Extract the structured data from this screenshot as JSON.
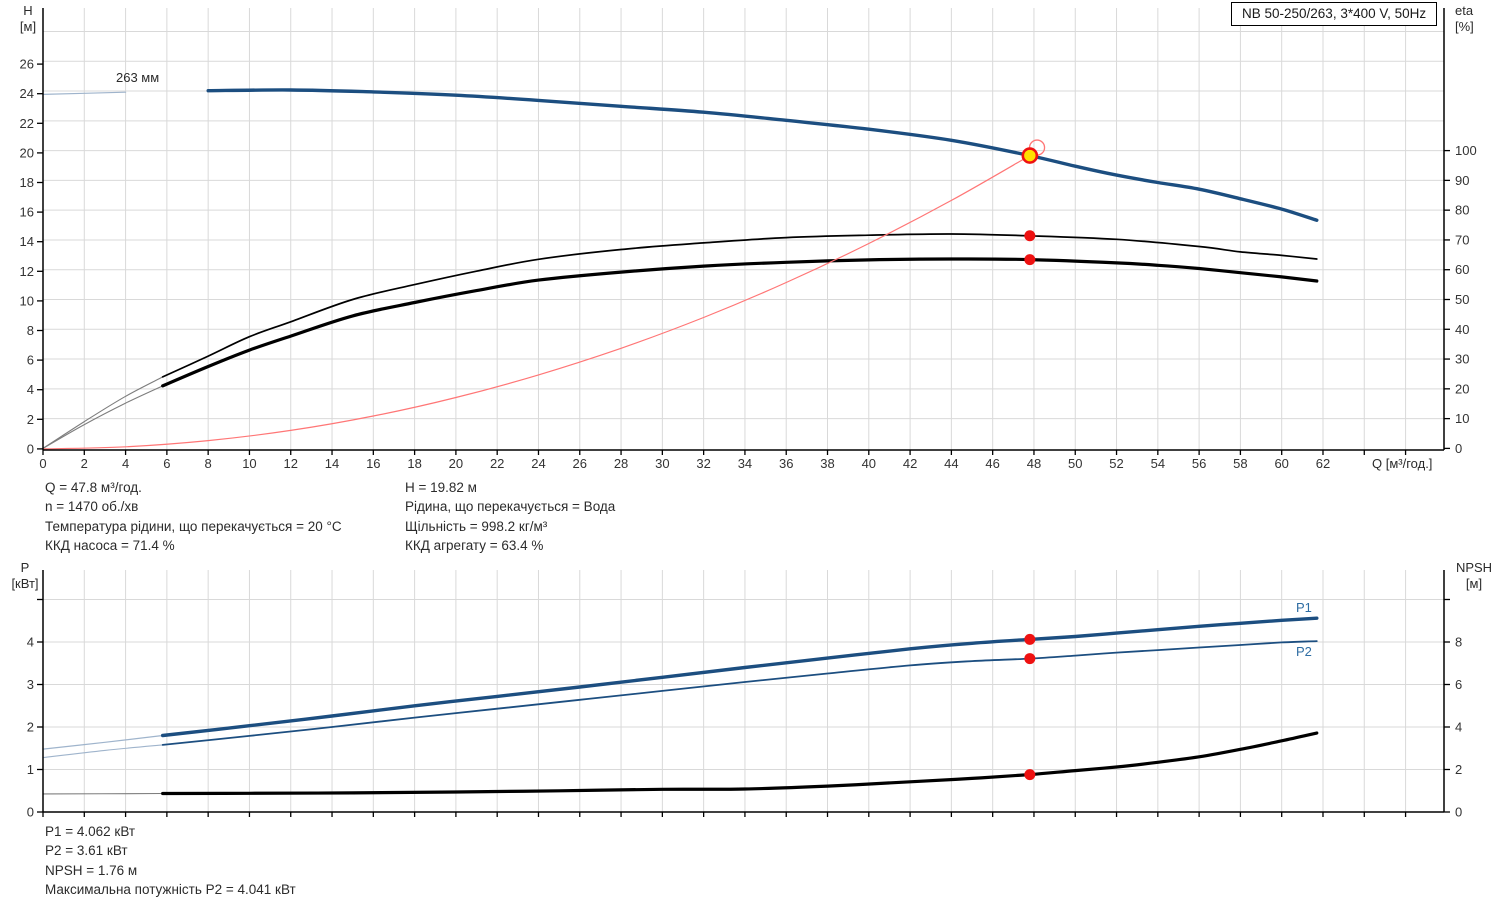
{
  "header": {
    "model_box": "NB 50-250/263, 3*400 V, 50Hz"
  },
  "colors": {
    "curve_blue": "#1c4e80",
    "curve_blue_thin": "#9fb4cc",
    "curve_black": "#000000",
    "curve_gray_thin": "#7d7d7d",
    "system_curve_red": "#ff7676",
    "marker_red": "#ee1111",
    "duty_yellow": "#ffe000",
    "grid": "#d9d9d9",
    "axis": "#000000",
    "text": "#333333",
    "label_blue": "#2e6da3"
  },
  "chart_data": [
    {
      "type": "line",
      "name": "qh-efficiency-chart",
      "impeller_label": "263 мм",
      "x_axis": {
        "label": "Q [м³/год.]",
        "min": 0,
        "max": 68,
        "tick_step": 2,
        "tick_max": 66,
        "label_max": 62
      },
      "y_left_axis": {
        "unit": [
          "H",
          "[м]"
        ],
        "min": 0,
        "max": 30,
        "tick_step": 2,
        "tick_max": 26,
        "label_max": 26
      },
      "y_right_axis": {
        "unit": [
          "eta",
          "[%]"
        ],
        "min": 0,
        "max": 148,
        "tick_step": 10,
        "tick_max": 100,
        "label_max": 100
      },
      "series": [
        {
          "name": "head-curve-263mm",
          "axis": "left",
          "style": "blue-thick",
          "thin_until": 5.8,
          "points": [
            [
              0,
              23.95
            ],
            [
              4,
              24.1
            ],
            [
              8,
              24.2
            ],
            [
              12,
              24.25
            ],
            [
              16,
              24.12
            ],
            [
              20,
              23.9
            ],
            [
              24,
              23.55
            ],
            [
              28,
              23.15
            ],
            [
              32,
              22.75
            ],
            [
              36,
              22.2
            ],
            [
              40,
              21.6
            ],
            [
              44,
              20.85
            ],
            [
              47.8,
              19.82
            ],
            [
              50,
              19.1
            ],
            [
              52,
              18.5
            ],
            [
              54,
              18.0
            ],
            [
              56,
              17.55
            ],
            [
              58,
              16.9
            ],
            [
              60,
              16.2
            ],
            [
              61.7,
              15.45
            ]
          ]
        },
        {
          "name": "pump-efficiency-curve",
          "axis": "right",
          "style": "black-thin",
          "thin_until": 5.8,
          "points": [
            [
              0,
              0
            ],
            [
              2,
              9
            ],
            [
              4,
              17.5
            ],
            [
              5.8,
              24
            ],
            [
              8,
              31
            ],
            [
              10,
              37.5
            ],
            [
              12,
              42.5
            ],
            [
              15,
              50
            ],
            [
              18,
              55
            ],
            [
              21,
              59.5
            ],
            [
              24,
              63.5
            ],
            [
              28,
              66.8
            ],
            [
              32,
              69
            ],
            [
              36,
              70.8
            ],
            [
              40,
              71.6
            ],
            [
              44,
              72
            ],
            [
              47.8,
              71.4
            ],
            [
              52,
              70.2
            ],
            [
              56,
              67.8
            ],
            [
              58,
              66
            ],
            [
              60,
              64.8
            ],
            [
              61.7,
              63.6
            ]
          ]
        },
        {
          "name": "unit-efficiency-curve",
          "axis": "right",
          "style": "black-thick",
          "thin_until": 5.8,
          "points": [
            [
              0,
              0
            ],
            [
              2,
              8
            ],
            [
              4,
              15.2
            ],
            [
              5.8,
              21
            ],
            [
              8,
              27.5
            ],
            [
              10,
              33
            ],
            [
              12,
              37.7
            ],
            [
              15,
              44.5
            ],
            [
              18,
              49
            ],
            [
              21,
              53
            ],
            [
              24,
              56.5
            ],
            [
              28,
              59.2
            ],
            [
              32,
              61.2
            ],
            [
              36,
              62.5
            ],
            [
              40,
              63.3
            ],
            [
              44,
              63.6
            ],
            [
              47.8,
              63.4
            ],
            [
              52,
              62.3
            ],
            [
              54,
              61.5
            ],
            [
              56,
              60.4
            ],
            [
              58,
              59
            ],
            [
              60,
              57.6
            ],
            [
              61.7,
              56.2
            ]
          ]
        },
        {
          "name": "system-curve",
          "axis": "left",
          "style": "red-thin",
          "points": [
            [
              0,
              0
            ],
            [
              4,
              0.14
            ],
            [
              8,
              0.56
            ],
            [
              12,
              1.25
            ],
            [
              16,
              2.22
            ],
            [
              20,
              3.47
            ],
            [
              24,
              5.0
            ],
            [
              28,
              6.8
            ],
            [
              32,
              8.88
            ],
            [
              36,
              11.24
            ],
            [
              40,
              13.88
            ],
            [
              44,
              16.79
            ],
            [
              47.8,
              19.82
            ]
          ]
        }
      ],
      "markers": [
        {
          "name": "requested-duty-ring",
          "kind": "ring",
          "q": 48.15,
          "v": 20.36,
          "axis": "left"
        },
        {
          "name": "duty-point",
          "kind": "duty",
          "q": 47.8,
          "v": 19.82,
          "axis": "left"
        },
        {
          "name": "pump-eta-dot",
          "kind": "dot",
          "q": 47.8,
          "v": 71.4,
          "axis": "right"
        },
        {
          "name": "unit-eta-dot",
          "kind": "dot",
          "q": 47.8,
          "v": 63.4,
          "axis": "right"
        }
      ],
      "duty_point": {
        "q": 47.8,
        "h": 19.82,
        "eta_pump": 71.4,
        "eta_unit": 63.4
      }
    },
    {
      "type": "line",
      "name": "power-npsh-chart",
      "x_axis": {
        "label": "",
        "min": 0,
        "max": 68,
        "tick_step": 2,
        "tick_max": 66,
        "label_max": -1
      },
      "y_left_axis": {
        "unit": [
          "P",
          "[кВт]"
        ],
        "min": 0,
        "max": 5.7,
        "tick_step": 1,
        "tick_max": 5,
        "label_max": 4
      },
      "y_right_axis": {
        "unit": [
          "NPSH",
          "[м]"
        ],
        "min": 0,
        "max": 11.4,
        "tick_step": 2,
        "tick_max": 10,
        "label_max": 8
      },
      "series": [
        {
          "name": "p1-curve",
          "label": "P1",
          "axis": "left",
          "style": "blue-thick",
          "thin_until": 5.8,
          "points": [
            [
              0,
              1.48
            ],
            [
              3,
              1.64
            ],
            [
              5.8,
              1.8
            ],
            [
              10,
              2.03
            ],
            [
              14,
              2.26
            ],
            [
              18,
              2.5
            ],
            [
              22,
              2.72
            ],
            [
              26,
              2.94
            ],
            [
              30,
              3.17
            ],
            [
              34,
              3.4
            ],
            [
              38,
              3.62
            ],
            [
              42,
              3.84
            ],
            [
              45,
              3.97
            ],
            [
              47.8,
              4.062
            ],
            [
              50,
              4.13
            ],
            [
              52,
              4.21
            ],
            [
              54,
              4.29
            ],
            [
              56,
              4.37
            ],
            [
              58,
              4.44
            ],
            [
              60,
              4.51
            ],
            [
              61.7,
              4.56
            ]
          ]
        },
        {
          "name": "p2-curve",
          "label": "P2",
          "axis": "left",
          "style": "blue-medium",
          "thin_until": 5.8,
          "points": [
            [
              0,
              1.28
            ],
            [
              3,
              1.45
            ],
            [
              5.8,
              1.58
            ],
            [
              10,
              1.79
            ],
            [
              14,
              2.0
            ],
            [
              18,
              2.22
            ],
            [
              22,
              2.43
            ],
            [
              26,
              2.64
            ],
            [
              30,
              2.85
            ],
            [
              34,
              3.06
            ],
            [
              38,
              3.26
            ],
            [
              42,
              3.45
            ],
            [
              45,
              3.55
            ],
            [
              47.8,
              3.61
            ],
            [
              50,
              3.68
            ],
            [
              52,
              3.75
            ],
            [
              54,
              3.81
            ],
            [
              56,
              3.87
            ],
            [
              58,
              3.93
            ],
            [
              60,
              3.99
            ],
            [
              61.7,
              4.02
            ]
          ]
        },
        {
          "name": "npsh-curve",
          "axis": "right",
          "style": "black-thick",
          "thin_until": 5.8,
          "points": [
            [
              0,
              0.85
            ],
            [
              5.8,
              0.87
            ],
            [
              10,
              0.88
            ],
            [
              15,
              0.9
            ],
            [
              20,
              0.94
            ],
            [
              25,
              1.0
            ],
            [
              30,
              1.07
            ],
            [
              34,
              1.08
            ],
            [
              38,
              1.22
            ],
            [
              42,
              1.42
            ],
            [
              45,
              1.58
            ],
            [
              47.8,
              1.76
            ],
            [
              50,
              1.95
            ],
            [
              52,
              2.12
            ],
            [
              54,
              2.34
            ],
            [
              56,
              2.6
            ],
            [
              58,
              2.95
            ],
            [
              60,
              3.35
            ],
            [
              61.7,
              3.72
            ]
          ]
        }
      ],
      "markers": [
        {
          "name": "p1-dot",
          "kind": "dot",
          "q": 47.8,
          "v": 4.062,
          "axis": "left"
        },
        {
          "name": "p2-dot",
          "kind": "dot",
          "q": 47.8,
          "v": 3.61,
          "axis": "left"
        },
        {
          "name": "npsh-dot",
          "kind": "dot",
          "q": 47.8,
          "v": 1.76,
          "axis": "right"
        }
      ],
      "duty_point": {
        "q": 47.8,
        "p1": 4.062,
        "p2": 3.61,
        "npsh": 1.76
      }
    }
  ],
  "annotations": {
    "top_left": [
      "Q = 47.8 м³/год.",
      "n = 1470 об./хв",
      "Температура рідини, що перекачується = 20 °C",
      "ККД насоса = 71.4 %"
    ],
    "top_right": [
      "H = 19.82 м",
      "Рідина, що перекачується = Вода",
      "Щільність = 998.2 кг/м³",
      "ККД агрегату = 63.4 %"
    ],
    "bottom": [
      "P1 = 4.062 кВт",
      "P2 = 3.61 кВт",
      "NPSH = 1.76 м",
      "Максимальна потужність P2 = 4.041 кВт"
    ]
  }
}
